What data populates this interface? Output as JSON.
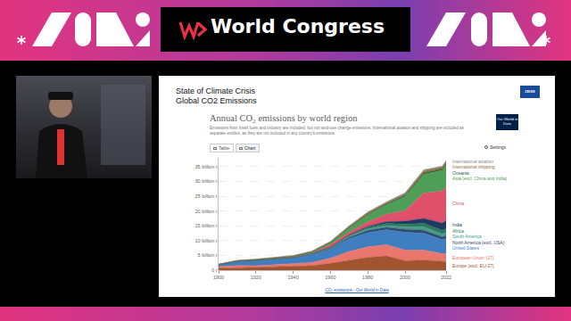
{
  "header": {
    "title": "World Congress"
  },
  "slide": {
    "title": [
      "State of Climate Crisis",
      "Global CO2 Emissions"
    ],
    "logo": "ZEISS",
    "source_logo": "Our World in Data",
    "tabs": [
      "Table",
      "Chart"
    ],
    "settings": "Settings",
    "footer": "CO₂ emissions - Our World in Data"
  },
  "chart_data": {
    "type": "area",
    "title": "Annual CO₂ emissions by world region",
    "subtitle": "Emissions from fossil fuels and industry are included, but not land-use change emissions. International aviation and shipping are included as separate entities, as they are not included in any country's emissions.",
    "stacked": true,
    "grid": true,
    "legend": "right",
    "x": [
      1900,
      1910,
      1920,
      1930,
      1940,
      1950,
      1960,
      1970,
      1980,
      1990,
      2000,
      2010,
      2020,
      2022
    ],
    "xlim": [
      1900,
      2022
    ],
    "xticks": [
      1900,
      1920,
      1940,
      1960,
      1980,
      2000,
      2022
    ],
    "ylim": [
      0,
      38
    ],
    "yticks": [
      {
        "value": 0,
        "label": "0 t"
      },
      {
        "value": 5,
        "label": "5 billion t"
      },
      {
        "value": 10,
        "label": "10 billion t"
      },
      {
        "value": 15,
        "label": "15 billion t"
      },
      {
        "value": 20,
        "label": "20 billion t"
      },
      {
        "value": 25,
        "label": "25 billion t"
      },
      {
        "value": 30,
        "label": "30 billion t"
      },
      {
        "value": 35,
        "label": "35 billion t"
      }
    ],
    "series": [
      {
        "name": "Europe (excl. EU-27)",
        "color": "#a2532f",
        "values": [
          0.6,
          0.8,
          0.8,
          1.0,
          1.3,
          1.5,
          2.3,
          3.4,
          4.3,
          4.8,
          3.2,
          3.4,
          3.0,
          2.9
        ]
      },
      {
        "name": "European Union (27)",
        "color": "#e9776d",
        "values": [
          0.6,
          0.8,
          0.7,
          0.9,
          1.0,
          1.1,
          1.8,
          2.9,
          3.6,
          3.8,
          3.6,
          3.4,
          2.6,
          2.7
        ]
      },
      {
        "name": "United States",
        "color": "#3f7fc1",
        "values": [
          0.66,
          1.35,
          1.75,
          1.75,
          1.8,
          2.6,
          2.9,
          4.3,
          4.8,
          5.1,
          6.0,
          5.7,
          4.7,
          5.1
        ]
      },
      {
        "name": "North America (excl. USA)",
        "color": "#2f4a6d",
        "values": [
          0.03,
          0.06,
          0.08,
          0.1,
          0.1,
          0.15,
          0.3,
          0.5,
          0.7,
          0.8,
          1.0,
          1.0,
          0.9,
          1.0
        ]
      },
      {
        "name": "South America",
        "color": "#4a9a8e",
        "values": [
          0.01,
          0.03,
          0.04,
          0.06,
          0.07,
          0.13,
          0.22,
          0.35,
          0.55,
          0.6,
          0.85,
          1.1,
          1.0,
          1.0
        ]
      },
      {
        "name": "Africa",
        "color": "#2b7a5e",
        "values": [
          0.01,
          0.02,
          0.03,
          0.05,
          0.07,
          0.1,
          0.15,
          0.3,
          0.55,
          0.7,
          0.9,
          1.2,
          1.3,
          1.3
        ]
      },
      {
        "name": "India",
        "color": "#1f3a60",
        "values": [
          0.02,
          0.03,
          0.04,
          0.05,
          0.06,
          0.07,
          0.12,
          0.2,
          0.3,
          0.6,
          1.0,
          1.7,
          2.4,
          2.8
        ]
      },
      {
        "name": "China",
        "color": "#e0506a",
        "values": [
          0.01,
          0.02,
          0.03,
          0.04,
          0.05,
          0.08,
          0.8,
          0.9,
          1.5,
          2.5,
          3.6,
          8.6,
          10.9,
          11.4
        ]
      },
      {
        "name": "Asia (excl. China and India)",
        "color": "#4f9e57",
        "values": [
          0.02,
          0.05,
          0.08,
          0.12,
          0.2,
          0.3,
          0.6,
          1.4,
          2.4,
          3.2,
          4.7,
          6.3,
          7.0,
          7.3
        ]
      },
      {
        "name": "Oceania",
        "color": "#1e5f3a",
        "values": [
          0.01,
          0.02,
          0.02,
          0.03,
          0.03,
          0.05,
          0.1,
          0.15,
          0.25,
          0.3,
          0.4,
          0.45,
          0.44,
          0.44
        ]
      },
      {
        "name": "International shipping",
        "color": "#9b6e3a",
        "values": [
          0.05,
          0.1,
          0.15,
          0.2,
          0.25,
          0.3,
          0.35,
          0.4,
          0.5,
          0.4,
          0.5,
          0.65,
          0.65,
          0.7
        ]
      },
      {
        "name": "International aviation",
        "color": "#8a8a8a",
        "values": [
          0,
          0,
          0,
          0,
          0,
          0.02,
          0.07,
          0.2,
          0.25,
          0.3,
          0.4,
          0.45,
          0.3,
          0.5
        ]
      }
    ]
  }
}
